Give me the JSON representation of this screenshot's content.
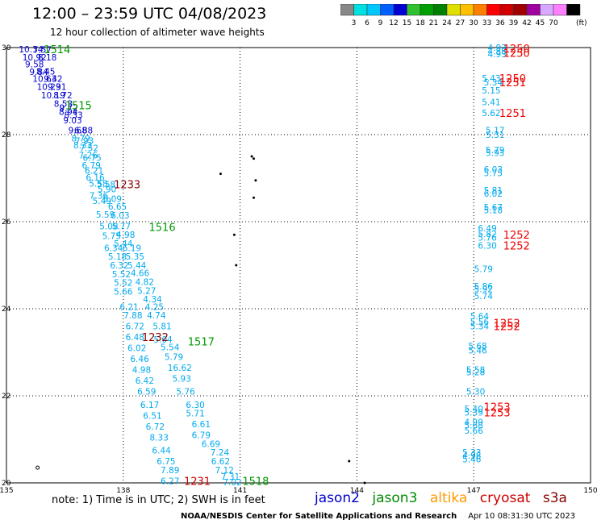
{
  "title": "12:00 – 23:59 UTC 04/08/2023",
  "subtitle": "12 hour collection of altimeter wave heights",
  "footnote": "note: 1) Time is in UTC; 2) SWH is in feet",
  "credit": "NOAA/NESDIS Center for Satellite Applications and Research",
  "timestamp": "Apr 10 08:31:30 UTC 2023",
  "legend": [
    {
      "name": "jason2",
      "color": "#0000cc"
    },
    {
      "name": "jason3",
      "color": "#008800"
    },
    {
      "name": "altika",
      "color": "#ff9900"
    },
    {
      "name": "cryosat",
      "color": "#cc0000"
    },
    {
      "name": "s3a",
      "color": "#880000"
    }
  ],
  "colorbar": {
    "labels": [
      "3",
      "6",
      "9",
      "12",
      "15",
      "18",
      "21",
      "24",
      "27",
      "30",
      "33",
      "36",
      "39",
      "42",
      "45",
      "70"
    ],
    "unit": "(ft)",
    "colors": [
      "#888888",
      "#00e0e0",
      "#00c8ff",
      "#0060ff",
      "#0000d0",
      "#30c030",
      "#00a000",
      "#008000",
      "#e0e000",
      "#ffc000",
      "#ff8000",
      "#ff0000",
      "#d00000",
      "#a00000",
      "#a000a0",
      "#d8a8ff",
      "#ff80ff",
      "#000000"
    ]
  },
  "chart_data": {
    "type": "scatter",
    "title": "12:00 – 23:59 UTC 04/08/2023",
    "subtitle": "12 hour collection of altimeter wave heights",
    "xlim": [
      135,
      150
    ],
    "ylim": [
      20,
      30
    ],
    "x_ticks": [
      "135",
      "138",
      "141",
      "144",
      "147",
      "150"
    ],
    "y_ticks": [
      "20",
      "22",
      "24",
      "26",
      "28",
      "30"
    ],
    "grid": true,
    "series": [
      {
        "name": "1514",
        "color": "#0000cc",
        "points": [
          [
            135.63,
            29.96,
            "10.34"
          ],
          [
            135.92,
            29.95,
            "7.57"
          ],
          [
            135.72,
            29.78,
            "10.92"
          ],
          [
            136.05,
            29.78,
            "8.18"
          ],
          [
            135.72,
            29.62,
            "9.58"
          ],
          [
            136.01,
            29.45,
            "8.45"
          ],
          [
            135.83,
            29.44,
            "9.84"
          ],
          [
            135.98,
            29.29,
            "10.63"
          ],
          [
            136.2,
            29.29,
            "9.42"
          ],
          [
            136.09,
            29.1,
            "10.29"
          ],
          [
            136.3,
            29.1,
            "9.31"
          ],
          [
            136.2,
            28.91,
            "10.19"
          ],
          [
            136.45,
            28.91,
            "8.72"
          ],
          [
            136.46,
            28.71,
            "8.53"
          ],
          [
            136.6,
            28.62,
            "9.72"
          ],
          [
            136.59,
            28.53,
            "8.94"
          ],
          [
            136.72,
            28.45,
            "8.33"
          ],
          [
            136.7,
            28.33,
            "9.03"
          ],
          [
            136.83,
            28.1,
            "9.68"
          ],
          [
            136.98,
            28.1,
            "6.88"
          ]
        ]
      },
      {
        "name": "1515",
        "color": "#00aaee",
        "points": [
          [
            136.91,
            27.92,
            "8.79"
          ],
          [
            137.0,
            27.86,
            "7.93"
          ],
          [
            136.96,
            27.76,
            "8.33"
          ],
          [
            137.12,
            27.69,
            "7.52"
          ],
          [
            137.1,
            27.53,
            "7.26"
          ],
          [
            137.2,
            27.47,
            "6.75"
          ],
          [
            137.18,
            27.3,
            "6.79"
          ],
          [
            137.25,
            27.18,
            "6.21"
          ],
          [
            137.28,
            27.02,
            "6.16"
          ],
          [
            137.36,
            26.88,
            "5.58"
          ],
          [
            137.56,
            26.86,
            "5.58"
          ],
          [
            137.58,
            26.75,
            "5.90"
          ],
          [
            137.37,
            26.6,
            "7.36"
          ],
          [
            137.72,
            26.53,
            "6.09"
          ],
          [
            137.45,
            26.48,
            "5.49"
          ],
          [
            137.85,
            26.35,
            "6.65"
          ],
          [
            137.54,
            26.17,
            "5.59"
          ],
          [
            137.92,
            26.15,
            "6.03"
          ],
          [
            137.63,
            25.9,
            "5.08"
          ],
          [
            137.95,
            25.9,
            "5.77"
          ],
          [
            137.7,
            25.68,
            "5.75"
          ],
          [
            138.06,
            25.7,
            "4.98"
          ]
        ]
      },
      {
        "name": "1516",
        "color": "#00aaee",
        "points": [
          [
            138.0,
            25.5,
            "5.44"
          ],
          [
            137.75,
            25.4,
            "6.34"
          ],
          [
            138.22,
            25.4,
            "6.19"
          ],
          [
            137.85,
            25.2,
            "5.18"
          ],
          [
            138.3,
            25.2,
            "5.35"
          ],
          [
            137.9,
            25.0,
            "6.32"
          ],
          [
            138.35,
            25.0,
            "5.44"
          ],
          [
            137.95,
            24.8,
            "5.52"
          ],
          [
            138.43,
            24.82,
            "4.66"
          ],
          [
            138.0,
            24.6,
            "5.52"
          ],
          [
            138.55,
            24.62,
            "4.82"
          ],
          [
            138.0,
            24.4,
            "5.66"
          ],
          [
            138.6,
            24.42,
            "5.27"
          ],
          [
            138.75,
            24.22,
            "4.34"
          ],
          [
            138.15,
            24.05,
            "6.21"
          ],
          [
            138.8,
            24.05,
            "4.25"
          ],
          [
            138.25,
            23.85,
            "7.88"
          ],
          [
            138.85,
            23.85,
            "4.74"
          ],
          [
            138.3,
            23.6,
            "6.72"
          ],
          [
            139.0,
            23.6,
            "5.81"
          ],
          [
            138.3,
            23.35,
            "6.48"
          ],
          [
            139.02,
            23.3,
            "5.04"
          ],
          [
            138.35,
            23.1,
            "6.02"
          ],
          [
            139.2,
            23.12,
            "5.54"
          ],
          [
            138.42,
            22.85,
            "6.46"
          ],
          [
            139.3,
            22.9,
            "5.79"
          ],
          [
            138.47,
            22.6,
            "4.98"
          ]
        ]
      },
      {
        "name": "1517",
        "color": "#00aaee",
        "points": [
          [
            139.45,
            22.65,
            "16.62"
          ],
          [
            138.55,
            22.35,
            "6.42"
          ],
          [
            139.5,
            22.4,
            "5.93"
          ],
          [
            138.6,
            22.1,
            "6.59"
          ],
          [
            139.6,
            22.1,
            "5.76"
          ],
          [
            138.68,
            21.8,
            "6.17"
          ],
          [
            139.85,
            21.8,
            "6.30"
          ],
          [
            138.75,
            21.55,
            "6.51"
          ],
          [
            139.85,
            21.6,
            "5.71"
          ],
          [
            138.82,
            21.3,
            "6.72"
          ],
          [
            140.0,
            21.35,
            "6.61"
          ],
          [
            138.92,
            21.05,
            "8.33"
          ],
          [
            140.0,
            21.1,
            "6.79"
          ],
          [
            140.25,
            20.9,
            "6.69"
          ],
          [
            138.98,
            20.75,
            "6.44"
          ],
          [
            140.48,
            20.7,
            "7.24"
          ],
          [
            139.1,
            20.5,
            "6.75"
          ],
          [
            140.5,
            20.5,
            "6.62"
          ],
          [
            139.2,
            20.3,
            "7.89"
          ],
          [
            140.6,
            20.3,
            "7.12"
          ],
          [
            140.75,
            20.15,
            "7.31"
          ],
          [
            139.2,
            20.05,
            "6.27"
          ],
          [
            140.8,
            20.02,
            "7.02"
          ]
        ]
      },
      {
        "name": "1250",
        "color": "#00aaee",
        "points": [
          [
            147.6,
            30.0,
            "4.93"
          ],
          [
            147.6,
            29.92,
            "4.88"
          ],
          [
            147.6,
            29.85,
            "4.93"
          ],
          [
            147.45,
            29.3,
            "5.43"
          ],
          [
            147.5,
            29.2,
            "5.34"
          ],
          [
            147.45,
            29.02,
            "5.15"
          ],
          [
            147.45,
            28.75,
            "5.41"
          ],
          [
            147.45,
            28.5,
            "5.62"
          ],
          [
            147.55,
            28.1,
            "5.17"
          ],
          [
            147.55,
            28.0,
            "5.31"
          ],
          [
            147.55,
            27.65,
            "5.79"
          ],
          [
            147.55,
            27.58,
            "5.93"
          ],
          [
            147.5,
            27.2,
            "6.03"
          ],
          [
            147.5,
            27.12,
            "5.75"
          ],
          [
            147.5,
            26.72,
            "5.81"
          ],
          [
            147.5,
            26.65,
            "6.02"
          ],
          [
            147.5,
            26.33,
            "5.67"
          ],
          [
            147.5,
            26.27,
            "5.18"
          ]
        ]
      },
      {
        "name": "1252",
        "color": "#00aaee",
        "points": [
          [
            147.35,
            25.85,
            "6.49"
          ],
          [
            147.35,
            25.72,
            "5.82"
          ],
          [
            147.35,
            25.64,
            "5.76"
          ],
          [
            147.35,
            25.45,
            "6.30"
          ],
          [
            147.25,
            24.92,
            "5.79"
          ],
          [
            147.25,
            24.52,
            "5.86"
          ],
          [
            147.25,
            24.45,
            "5.92"
          ],
          [
            147.25,
            24.3,
            "5.74"
          ],
          [
            147.15,
            23.83,
            "5.64"
          ],
          [
            147.15,
            23.7,
            "5.56"
          ],
          [
            147.15,
            23.6,
            "5.34"
          ],
          [
            147.1,
            23.15,
            "5.68"
          ],
          [
            147.1,
            23.05,
            "5.46"
          ],
          [
            147.05,
            22.6,
            "5.58"
          ],
          [
            147.05,
            22.55,
            "5.28"
          ],
          [
            147.05,
            22.1,
            "5.30"
          ]
        ]
      },
      {
        "name": "1253",
        "color": "#00aaee",
        "points": [
          [
            147.0,
            21.7,
            "5.40"
          ],
          [
            147.0,
            21.62,
            "5.39"
          ],
          [
            147.0,
            21.4,
            "4.99"
          ],
          [
            147.0,
            21.32,
            "5.68"
          ],
          [
            147.0,
            21.2,
            "5.66"
          ],
          [
            146.95,
            20.7,
            "5.33"
          ],
          [
            146.95,
            20.63,
            "4.98"
          ],
          [
            146.95,
            20.55,
            "5.46"
          ]
        ]
      }
    ],
    "pass_labels": [
      {
        "text": "1514",
        "x": 136.3,
        "y": 29.96,
        "color": "#009900"
      },
      {
        "text": "1515",
        "x": 136.85,
        "y": 28.68,
        "color": "#009900"
      },
      {
        "text": "1233",
        "x": 138.1,
        "y": 26.86,
        "color": "#880000"
      },
      {
        "text": "1516",
        "x": 139.0,
        "y": 25.88,
        "color": "#009900"
      },
      {
        "text": "1232",
        "x": 138.82,
        "y": 23.35,
        "color": "#880000"
      },
      {
        "text": "1517",
        "x": 140.0,
        "y": 23.25,
        "color": "#009900"
      },
      {
        "text": "1231",
        "x": 139.9,
        "y": 20.05,
        "color": "#cc0000"
      },
      {
        "text": "1518",
        "x": 141.4,
        "y": 20.05,
        "color": "#009900"
      },
      {
        "text": "1250",
        "x": 148.1,
        "y": 29.98,
        "color": "#ee0000"
      },
      {
        "text": "1250",
        "x": 148.1,
        "y": 29.88,
        "color": "#ee0000"
      },
      {
        "text": "1250",
        "x": 148.0,
        "y": 29.3,
        "color": "#ee0000"
      },
      {
        "text": "1251",
        "x": 148.0,
        "y": 29.2,
        "color": "#ee0000"
      },
      {
        "text": "1251",
        "x": 148.0,
        "y": 28.5,
        "color": "#ee0000"
      },
      {
        "text": "1252",
        "x": 148.1,
        "y": 25.7,
        "color": "#ee0000"
      },
      {
        "text": "1252",
        "x": 148.1,
        "y": 25.45,
        "color": "#ee0000"
      },
      {
        "text": "1252",
        "x": 147.85,
        "y": 23.68,
        "color": "#ee0000"
      },
      {
        "text": "1252",
        "x": 147.85,
        "y": 23.6,
        "color": "#ee0000"
      },
      {
        "text": "1253",
        "x": 147.6,
        "y": 21.75,
        "color": "#ee0000"
      },
      {
        "text": "1253",
        "x": 147.6,
        "y": 21.62,
        "color": "#ee0000"
      }
    ]
  }
}
